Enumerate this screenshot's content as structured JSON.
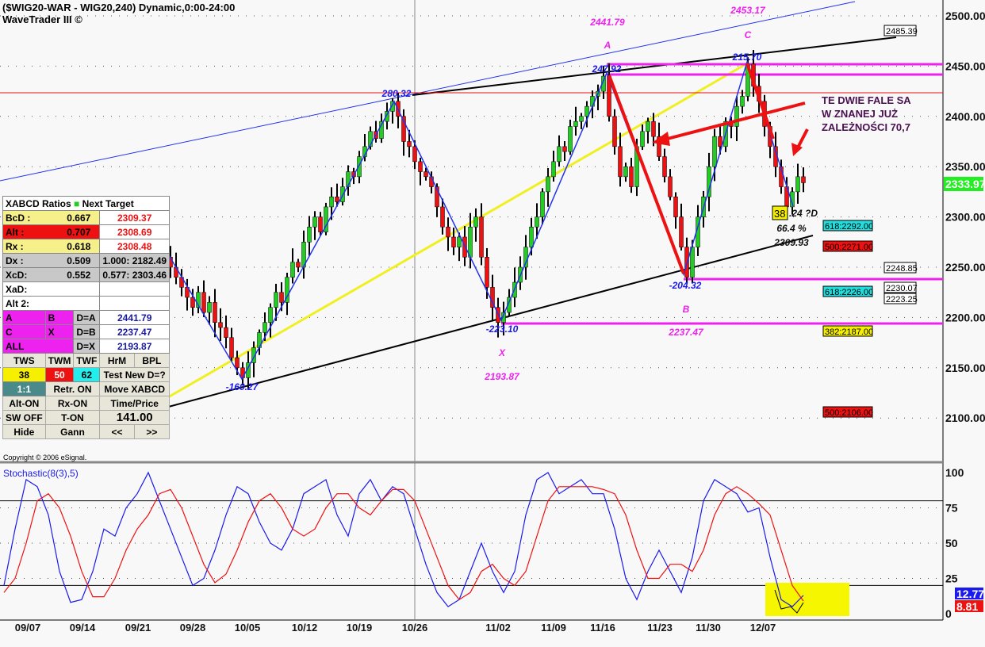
{
  "header": {
    "title": "($WIG20-WAR - WIG20,240) Dynamic,0:00-24:00",
    "subtitle": "WaveTrader III ©"
  },
  "chart_data": [
    {
      "type": "candlestick",
      "title": "($WIG20-WAR - WIG20,240) Dynamic,0:00-24:00",
      "ylim": [
        2080,
        2520
      ],
      "yticks": [
        "2100.00",
        "2150.00",
        "2200.00",
        "2250.00",
        "2300.00",
        "2350.00",
        "2400.00",
        "2450.00",
        "2500.00"
      ],
      "xticks": [
        "09/07",
        "09/14",
        "09/21",
        "09/28",
        "10/05",
        "10/12",
        "10/19",
        "10/26",
        "11/02",
        "11/09",
        "11/16",
        "11/23",
        "11/30",
        "12/07"
      ],
      "last_price": "2333.97",
      "colors": {
        "up": "#22cc22",
        "down": "#ee1111"
      },
      "closes": [
        2110,
        2125,
        2150,
        2170,
        2185,
        2200,
        2215,
        2222,
        2230,
        2190,
        2160,
        2130,
        2110,
        2125,
        2118,
        2140,
        2150,
        2160,
        2185,
        2200,
        2230,
        2245,
        2265,
        2280,
        2290,
        2270,
        2285,
        2275,
        2260,
        2250,
        2240,
        2230,
        2220,
        2210,
        2225,
        2205,
        2215,
        2195,
        2190,
        2180,
        2160,
        2150,
        2140,
        2155,
        2170,
        2185,
        2195,
        2210,
        2225,
        2215,
        2240,
        2255,
        2250,
        2275,
        2290,
        2300,
        2285,
        2310,
        2320,
        2315,
        2330,
        2345,
        2340,
        2360,
        2370,
        2385,
        2378,
        2395,
        2405,
        2415,
        2400,
        2375,
        2370,
        2355,
        2345,
        2340,
        2330,
        2310,
        2290,
        2280,
        2270,
        2280,
        2260,
        2290,
        2300,
        2260,
        2230,
        2210,
        2195,
        2205,
        2220,
        2235,
        2250,
        2270,
        2290,
        2300,
        2325,
        2340,
        2355,
        2370,
        2365,
        2390,
        2395,
        2400,
        2410,
        2420,
        2425,
        2440,
        2400,
        2370,
        2340,
        2350,
        2330,
        2370,
        2385,
        2395,
        2380,
        2360,
        2340,
        2320,
        2300,
        2270,
        2240,
        2270,
        2300,
        2320,
        2350,
        2380,
        2370,
        2395,
        2390,
        2410,
        2420,
        2452,
        2430,
        2415,
        2390,
        2370,
        2350,
        2330,
        2310,
        2325,
        2340,
        2334
      ],
      "pattern_points": [
        {
          "name": "X",
          "price": "2193.87",
          "swing": "-223.10"
        },
        {
          "name": "A",
          "price": "2441.79",
          "swing": "247.92"
        },
        {
          "name": "B",
          "price": "2237.47",
          "swing": "-204.32"
        },
        {
          "name": "C",
          "price": "2453.17",
          "swing": "215.70"
        }
      ],
      "other_swings": [
        "280.32",
        "-160.27"
      ],
      "d_projection": {
        "box": "38",
        "text": ".24 ?D",
        "pct": "66.4 %",
        "price": "2309.93"
      },
      "level_boxes": [
        {
          "text": "2485.39",
          "color": "#ffffff"
        },
        {
          "text": "618:2292.00",
          "color": "#22dddd"
        },
        {
          "text": "500:2271.00",
          "color": "#ee1111"
        },
        {
          "text": "2248.85",
          "color": "#ffffff"
        },
        {
          "text": "2230.07",
          "color": "#ffffff"
        },
        {
          "text": "2223.25",
          "color": "#ffffff"
        },
        {
          "text": "618:2226.00",
          "color": "#22dddd"
        },
        {
          "text": "382:2187.00",
          "color": "#f6f000"
        },
        {
          "text": "500:2106.00",
          "color": "#ee1111"
        }
      ],
      "annotation": [
        "TE DWIE FALE SA",
        "W ZNANEJ JUŻ",
        "ZALEŻNOŚCI 70,7"
      ]
    },
    {
      "type": "line",
      "title": "Stochastic(8(3),5)",
      "ylim": [
        0,
        100
      ],
      "yticks": [
        "0",
        "25",
        "50",
        "75",
        "100"
      ],
      "levels": [
        80,
        20
      ],
      "series": [
        {
          "color": "#1a1aee",
          "last": "12.77",
          "values": [
            20,
            60,
            95,
            90,
            70,
            30,
            8,
            10,
            30,
            60,
            55,
            75,
            85,
            100,
            80,
            60,
            40,
            20,
            25,
            45,
            70,
            90,
            85,
            65,
            50,
            45,
            60,
            85,
            90,
            95,
            70,
            55,
            85,
            95,
            80,
            90,
            85,
            60,
            35,
            15,
            5,
            10,
            30,
            50,
            30,
            15,
            30,
            70,
            95,
            100,
            85,
            90,
            95,
            85,
            85,
            60,
            25,
            10,
            30,
            45,
            30,
            15,
            40,
            80,
            95,
            90,
            85,
            72,
            75,
            40,
            10,
            5,
            13
          ]
        },
        {
          "color": "#ee1111",
          "last": "8.81",
          "values": [
            15,
            25,
            50,
            80,
            85,
            75,
            55,
            30,
            12,
            12,
            25,
            45,
            60,
            70,
            85,
            88,
            75,
            55,
            35,
            22,
            28,
            45,
            65,
            80,
            85,
            75,
            60,
            55,
            60,
            75,
            85,
            85,
            75,
            70,
            80,
            88,
            88,
            80,
            60,
            40,
            20,
            10,
            15,
            30,
            35,
            25,
            20,
            30,
            55,
            80,
            90,
            90,
            90,
            90,
            88,
            85,
            70,
            45,
            25,
            25,
            35,
            35,
            30,
            45,
            70,
            85,
            90,
            85,
            78,
            70,
            45,
            20,
            9
          ]
        }
      ]
    }
  ],
  "panel": {
    "header": "XABCD Ratios",
    "header2": "Next Target",
    "rows": [
      {
        "label": "BcD :",
        "ratio": "0.667",
        "target": "2309.37"
      },
      {
        "label": "Alt  :",
        "ratio": "0.707",
        "target": "2308.69"
      },
      {
        "label": "Rx   :",
        "ratio": "0.618",
        "target": "2308.48"
      },
      {
        "label": "Dx   :",
        "ratio": "0.509",
        "target": "1.000: 2182.49"
      },
      {
        "label": "XcD:",
        "ratio": "0.552",
        "target": "0.577: 2303.46"
      },
      {
        "label": "XaD:",
        "ratio": "",
        "target": ""
      },
      {
        "label": "Alt 2:",
        "ratio": "",
        "target": ""
      }
    ],
    "points": [
      {
        "a": "A",
        "b": "B",
        "d": "D=A",
        "v": "2441.79"
      },
      {
        "a": "C",
        "b": "X",
        "d": "D=B",
        "v": "2237.47"
      },
      {
        "a": "ALL",
        "b": "",
        "d": "D=X",
        "v": "2193.87"
      }
    ],
    "buttons": {
      "tws": "TWS",
      "twm": "TWM",
      "twf": "TWF",
      "hrm": "HrM",
      "bpl": "BPL",
      "b38": "38",
      "b50": "50",
      "b62": "62",
      "test": "Test New D=?",
      "oneone": "1:1",
      "retr": "Retr. ON",
      "move": "Move XABCD",
      "alt": "Alt-ON",
      "rx": "Rx-ON",
      "timeprice": "Time/Price",
      "sw": "SW OFF",
      "ton": "T-ON",
      "value": "141.00",
      "hide": "Hide",
      "gann": "Gann",
      "prev": "<<",
      "next": ">>"
    },
    "copyright": "Copyright © 2006 eSignal."
  }
}
